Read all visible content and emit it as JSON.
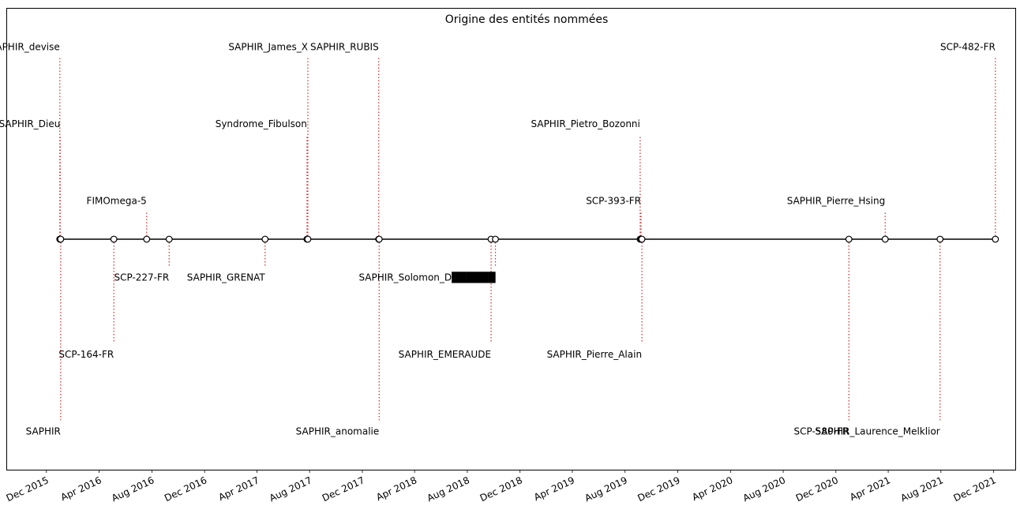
{
  "chart_data": {
    "type": "timeline",
    "title": "Origine des entités nommées",
    "x_tick_labels": [
      "Dec 2015",
      "Apr 2016",
      "Aug 2016",
      "Dec 2016",
      "Apr 2017",
      "Aug 2017",
      "Dec 2017",
      "Apr 2018",
      "Aug 2018",
      "Dec 2018",
      "Apr 2019",
      "Aug 2019",
      "Dec 2019",
      "Apr 2020",
      "Aug 2020",
      "Dec 2020",
      "Apr 2021",
      "Aug 2021",
      "Dec 2021"
    ],
    "xlim": [
      "2015-09-01",
      "2022-01-20"
    ],
    "ylim": [
      -6,
      6
    ],
    "events": [
      {
        "label": "SAPHIR_devise",
        "date": "2016-01-01",
        "level": 5
      },
      {
        "label": "SAPHIR_Dieu",
        "date": "2016-01-02",
        "level": 3
      },
      {
        "label": "SAPHIR",
        "date": "2016-01-03",
        "level": -5
      },
      {
        "label": "SCP-164-FR",
        "date": "2016-05-05",
        "level": -3
      },
      {
        "label": "FIMOmega-5",
        "date": "2016-07-20",
        "level": 1
      },
      {
        "label": "SCP-227-FR",
        "date": "2016-09-10",
        "level": -1
      },
      {
        "label": "SAPHIR_GRENAT",
        "date": "2017-04-20",
        "level": -1
      },
      {
        "label": "Syndrome_Fibulson",
        "date": "2017-07-26",
        "level": 3
      },
      {
        "label": "SAPHIR_James_X",
        "date": "2017-07-28",
        "level": 5
      },
      {
        "label": "SAPHIR_RUBIS",
        "date": "2018-01-08",
        "level": 5
      },
      {
        "label": "SAPHIR_anomalie",
        "date": "2018-01-09",
        "level": -5
      },
      {
        "label": "SAPHIR_EMERAUDE",
        "date": "2018-09-25",
        "level": -3
      },
      {
        "label": "SAPHIR_Solomon_D██████",
        "date": "2018-10-05",
        "level": -1
      },
      {
        "label": "SAPHIR_Pietro_Bozonni",
        "date": "2019-09-05",
        "level": 3
      },
      {
        "label": "SCP-393-FR",
        "date": "2019-09-07",
        "level": 1
      },
      {
        "label": "SAPHIR_Pierre_Alain",
        "date": "2019-09-09",
        "level": -3
      },
      {
        "label": "SCP-580-FR",
        "date": "2020-12-31",
        "level": -5
      },
      {
        "label": "SAPHIR_Pierre_Hsing",
        "date": "2021-03-25",
        "level": 1
      },
      {
        "label": "SAPHIR_Laurence_Melklior",
        "date": "2021-07-30",
        "level": -5
      },
      {
        "label": "SCP-482-FR",
        "date": "2021-12-05",
        "level": 5
      }
    ],
    "colors": {
      "stem": "#d62728",
      "baseline": "#000000",
      "marker_fill": "#ffffff"
    }
  }
}
